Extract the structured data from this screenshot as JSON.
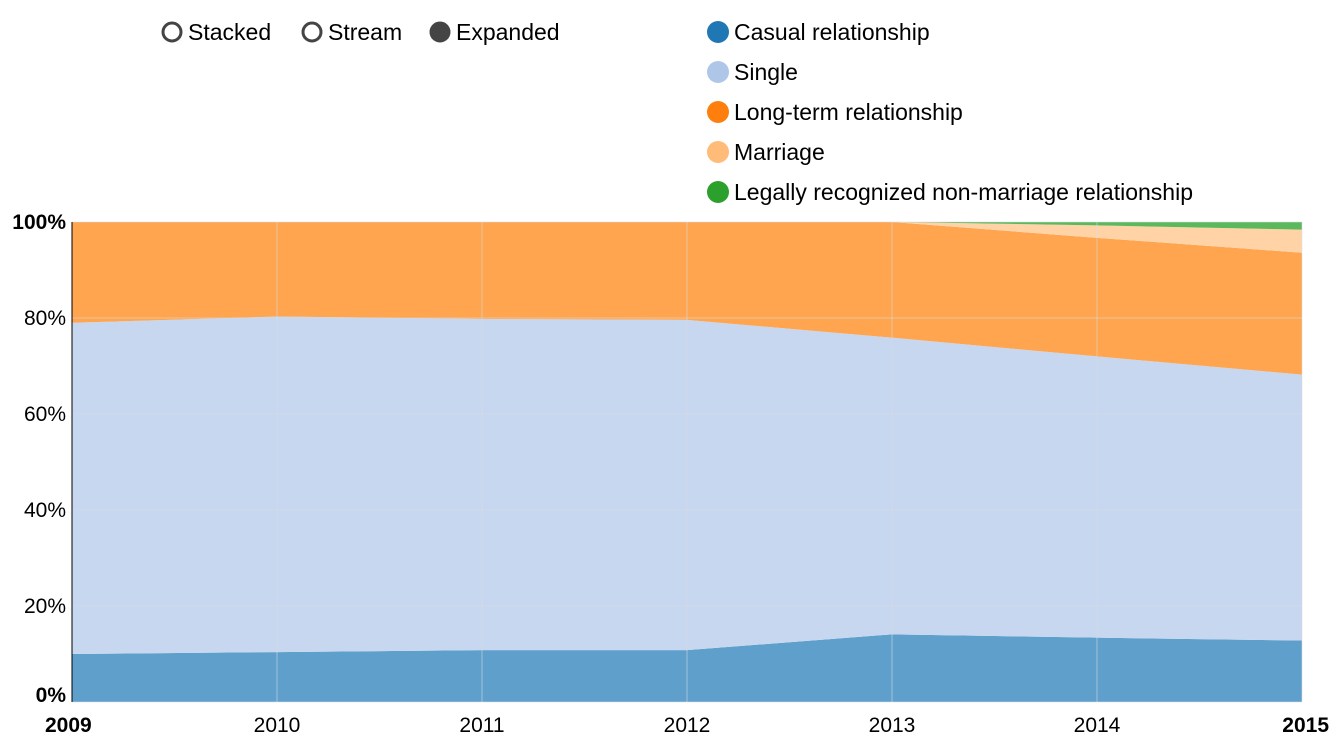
{
  "controls": [
    {
      "label": "Stacked",
      "selected": false
    },
    {
      "label": "Stream",
      "selected": false
    },
    {
      "label": "Expanded",
      "selected": true
    }
  ],
  "colors": {
    "control_ring": "#444444",
    "control_fill": "#444444",
    "grid": "#d9dde5",
    "axis": "#000000"
  },
  "chart_data": {
    "type": "area",
    "stacked": true,
    "mode": "expanded",
    "x": [
      "2009",
      "2010",
      "2011",
      "2012",
      "2013",
      "2014",
      "2015"
    ],
    "y_ticks": [
      "0%",
      "20%",
      "40%",
      "60%",
      "80%",
      "100%"
    ],
    "ylim": [
      0,
      100
    ],
    "legend_position": "top-right",
    "grid": true,
    "series": [
      {
        "name": "Casual relationship",
        "color": "#1f77b4",
        "fill": "#5f9fcb",
        "values": [
          10,
          10.4,
          10.8,
          10.8,
          14.1,
          13.4,
          12.8
        ]
      },
      {
        "name": "Single",
        "color": "#aec7e8",
        "fill": "#c6d7ef",
        "values": [
          69,
          69.9,
          69.0,
          68.8,
          61.8,
          58.6,
          55.4
        ]
      },
      {
        "name": "Long-term relationship",
        "color": "#ff7f0e",
        "fill": "#ffa54f",
        "values": [
          21,
          19.7,
          20.2,
          20.4,
          24.1,
          24.7,
          25.4
        ]
      },
      {
        "name": "Marriage",
        "color": "#ffbb78",
        "fill": "#ffd3a6",
        "values": [
          0,
          0,
          0,
          0,
          0,
          2.6,
          4.8
        ]
      },
      {
        "name": "Legally recognized non-marriage relationship",
        "color": "#2ca02c",
        "fill": "#5cb85c",
        "values": [
          0,
          0,
          0,
          0,
          0,
          0.7,
          1.6
        ]
      }
    ]
  }
}
